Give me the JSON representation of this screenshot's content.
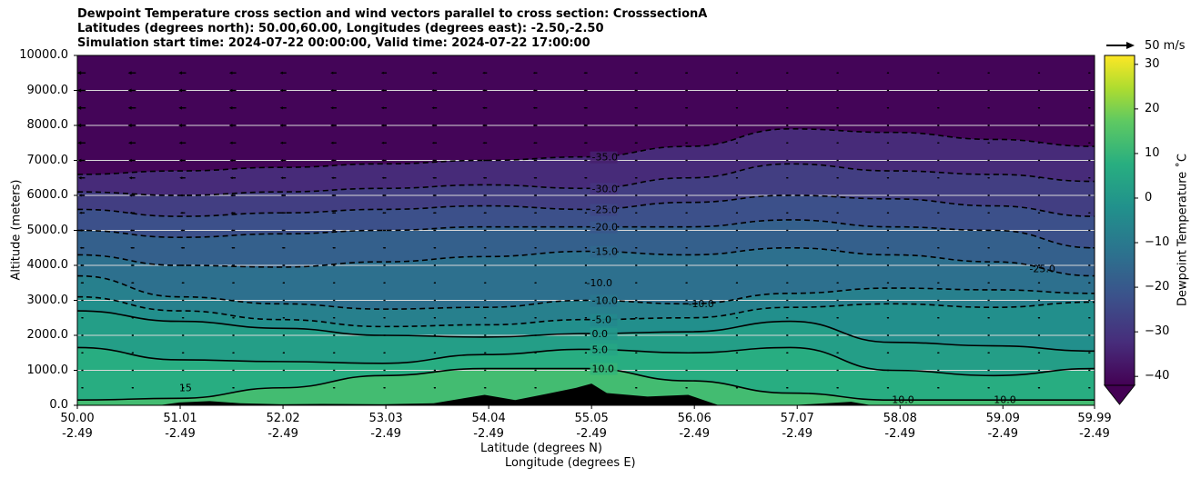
{
  "title_lines": [
    "Dewpoint Temperature cross section and wind vectors parallel to cross section: CrosssectionA",
    "Latitudes (degrees north): 50.00,60.00, Longitudes (degrees east): -2.50,-2.50",
    "Simulation start time: 2024-07-22 00:00:00, Valid time: 2024-07-22 17:00:00"
  ],
  "chart_data": {
    "type": "heatmap",
    "ylabel": "Altitude (meters)",
    "xlabel_lines": [
      "Latitude (degrees N)",
      "Longitude (degrees E)"
    ],
    "ylim": [
      0,
      10000
    ],
    "yticks": [
      "0.0",
      "1000.0",
      "2000.0",
      "3000.0",
      "4000.0",
      "5000.0",
      "6000.0",
      "7000.0",
      "8000.0",
      "9000.0",
      "10000.0"
    ],
    "ytick_values": [
      0,
      1000,
      2000,
      3000,
      4000,
      5000,
      6000,
      7000,
      8000,
      9000,
      10000
    ],
    "xlim": [
      50.0,
      59.99
    ],
    "xticks": [
      {
        "lat": "50.00",
        "lon": "-2.49"
      },
      {
        "lat": "51.01",
        "lon": "-2.49"
      },
      {
        "lat": "52.02",
        "lon": "-2.49"
      },
      {
        "lat": "53.03",
        "lon": "-2.49"
      },
      {
        "lat": "54.04",
        "lon": "-2.49"
      },
      {
        "lat": "55.05",
        "lon": "-2.49"
      },
      {
        "lat": "56.06",
        "lon": "-2.49"
      },
      {
        "lat": "57.07",
        "lon": "-2.49"
      },
      {
        "lat": "58.08",
        "lon": "-2.49"
      },
      {
        "lat": "59.09",
        "lon": "-2.49"
      },
      {
        "lat": "59.99",
        "lon": "-2.49"
      }
    ],
    "xtick_values": [
      50.0,
      51.01,
      52.02,
      53.03,
      54.04,
      55.05,
      56.06,
      57.07,
      58.08,
      59.09,
      59.99
    ],
    "grid": "horizontal",
    "colorbar": {
      "label": "Dewpoint Temperature $^\\circ$C",
      "label_text": "Dewpoint Temperature ˚C",
      "min": -42,
      "max": 32,
      "ticks": [
        "30",
        "20",
        "10",
        "0",
        "−10",
        "−20",
        "−30",
        "−40"
      ],
      "tick_values": [
        30,
        20,
        10,
        0,
        -10,
        -20,
        -30,
        -40
      ],
      "extend": "min"
    },
    "contour_levels": [
      {
        "value": 10.0,
        "label": "10.0",
        "style": "solid",
        "profile": [
          [
            50.0,
            150
          ],
          [
            51.0,
            200
          ],
          [
            52.0,
            500
          ],
          [
            53.0,
            850
          ],
          [
            54.0,
            1050
          ],
          [
            55.0,
            1050
          ],
          [
            56.0,
            700
          ],
          [
            57.0,
            350
          ],
          [
            58.0,
            150
          ],
          [
            59.0,
            150
          ],
          [
            59.99,
            150
          ]
        ]
      },
      {
        "value": 5.0,
        "label": "5.0",
        "style": "solid",
        "profile": [
          [
            50.0,
            1650
          ],
          [
            51.0,
            1300
          ],
          [
            52.0,
            1250
          ],
          [
            53.0,
            1200
          ],
          [
            54.0,
            1450
          ],
          [
            55.0,
            1600
          ],
          [
            56.0,
            1500
          ],
          [
            57.0,
            1650
          ],
          [
            58.0,
            1000
          ],
          [
            59.0,
            850
          ],
          [
            59.99,
            1050
          ]
        ]
      },
      {
        "value": 0.0,
        "label": "0.0",
        "style": "solid",
        "profile": [
          [
            50.0,
            2700
          ],
          [
            51.0,
            2400
          ],
          [
            52.0,
            2200
          ],
          [
            53.0,
            2000
          ],
          [
            54.0,
            1950
          ],
          [
            55.0,
            2050
          ],
          [
            56.0,
            2100
          ],
          [
            57.0,
            2400
          ],
          [
            58.0,
            1800
          ],
          [
            59.0,
            1700
          ],
          [
            59.99,
            1550
          ]
        ]
      },
      {
        "value": -5.0,
        "label": "-5.0",
        "style": "dashed",
        "profile": [
          [
            50.0,
            3100
          ],
          [
            51.0,
            2700
          ],
          [
            52.0,
            2450
          ],
          [
            53.0,
            2250
          ],
          [
            54.0,
            2300
          ],
          [
            55.0,
            2450
          ],
          [
            56.0,
            2500
          ],
          [
            57.0,
            2800
          ],
          [
            58.0,
            2900
          ],
          [
            59.0,
            2800
          ],
          [
            59.99,
            2950
          ]
        ]
      },
      {
        "value": -10.0,
        "label": "-10.0",
        "style": "dashed",
        "profile": [
          [
            50.0,
            3700
          ],
          [
            51.0,
            3100
          ],
          [
            52.0,
            2900
          ],
          [
            53.0,
            2750
          ],
          [
            54.0,
            2800
          ],
          [
            55.0,
            3000
          ],
          [
            56.0,
            2900
          ],
          [
            57.0,
            3200
          ],
          [
            58.0,
            3350
          ],
          [
            59.0,
            3300
          ],
          [
            59.99,
            3200
          ]
        ]
      },
      {
        "value": -15.0,
        "label": "-15.0",
        "style": "dashed",
        "profile": [
          [
            50.0,
            4300
          ],
          [
            51.0,
            4000
          ],
          [
            52.0,
            3950
          ],
          [
            53.0,
            4100
          ],
          [
            54.0,
            4250
          ],
          [
            55.0,
            4400
          ],
          [
            56.0,
            4300
          ],
          [
            57.0,
            4500
          ],
          [
            58.0,
            4300
          ],
          [
            59.0,
            4100
          ],
          [
            59.99,
            3700
          ]
        ]
      },
      {
        "value": -20.0,
        "label": "-20.0",
        "style": "dashed",
        "profile": [
          [
            50.0,
            5000
          ],
          [
            51.0,
            4800
          ],
          [
            52.0,
            4900
          ],
          [
            53.0,
            5000
          ],
          [
            54.0,
            5100
          ],
          [
            55.0,
            5100
          ],
          [
            56.0,
            5100
          ],
          [
            57.0,
            5300
          ],
          [
            58.0,
            5100
          ],
          [
            59.0,
            5000
          ],
          [
            59.99,
            4500
          ]
        ]
      },
      {
        "value": -25.0,
        "label": "-25.0",
        "style": "dashed",
        "profile": [
          [
            50.0,
            5600
          ],
          [
            51.0,
            5400
          ],
          [
            52.0,
            5500
          ],
          [
            53.0,
            5600
          ],
          [
            54.0,
            5700
          ],
          [
            55.0,
            5600
          ],
          [
            56.0,
            5800
          ],
          [
            57.0,
            6000
          ],
          [
            58.0,
            5900
          ],
          [
            59.0,
            5700
          ],
          [
            59.99,
            5400
          ]
        ]
      },
      {
        "value": -30.0,
        "label": "-30.0",
        "style": "dashed",
        "profile": [
          [
            50.0,
            6100
          ],
          [
            51.0,
            6000
          ],
          [
            52.0,
            6100
          ],
          [
            53.0,
            6200
          ],
          [
            54.0,
            6300
          ],
          [
            55.0,
            6200
          ],
          [
            56.0,
            6500
          ],
          [
            57.0,
            6900
          ],
          [
            58.0,
            6700
          ],
          [
            59.0,
            6600
          ],
          [
            59.99,
            6400
          ]
        ]
      },
      {
        "value": -35.0,
        "label": "-35.0",
        "style": "dashed",
        "profile": [
          [
            50.0,
            6600
          ],
          [
            51.0,
            6700
          ],
          [
            52.0,
            6800
          ],
          [
            53.0,
            6900
          ],
          [
            54.0,
            7000
          ],
          [
            55.0,
            7100
          ],
          [
            56.0,
            7400
          ],
          [
            57.0,
            7900
          ],
          [
            58.0,
            7800
          ],
          [
            59.0,
            7600
          ],
          [
            59.99,
            7400
          ]
        ]
      }
    ],
    "extra_contour_labels": [
      {
        "text": "-10.0",
        "lat": 56.0,
        "alt": 2800
      },
      {
        "text": "-10.0",
        "lat": 55.0,
        "alt": 3400
      },
      {
        "text": "10.0",
        "lat": 58.0,
        "alt": 70
      },
      {
        "text": "10.0",
        "lat": 59.0,
        "alt": 60
      },
      {
        "text": "15",
        "lat": 51.0,
        "alt": 400
      },
      {
        "text": "-25.0",
        "lat": 59.35,
        "alt": 3800
      }
    ],
    "terrain_profile": [
      [
        50.0,
        0
      ],
      [
        50.8,
        0
      ],
      [
        51.0,
        80
      ],
      [
        51.3,
        120
      ],
      [
        51.6,
        60
      ],
      [
        52.0,
        30
      ],
      [
        52.4,
        40
      ],
      [
        53.0,
        30
      ],
      [
        53.5,
        60
      ],
      [
        54.0,
        300
      ],
      [
        54.3,
        150
      ],
      [
        54.6,
        320
      ],
      [
        54.9,
        500
      ],
      [
        55.05,
        620
      ],
      [
        55.2,
        350
      ],
      [
        55.6,
        250
      ],
      [
        56.0,
        300
      ],
      [
        56.3,
        0
      ],
      [
        57.0,
        0
      ],
      [
        57.6,
        100
      ],
      [
        57.8,
        0
      ],
      [
        59.99,
        0
      ]
    ],
    "wind_vector_reference": {
      "label": "50 m/s",
      "speed": 50
    },
    "wind_upper_speed_ms": 15
  }
}
